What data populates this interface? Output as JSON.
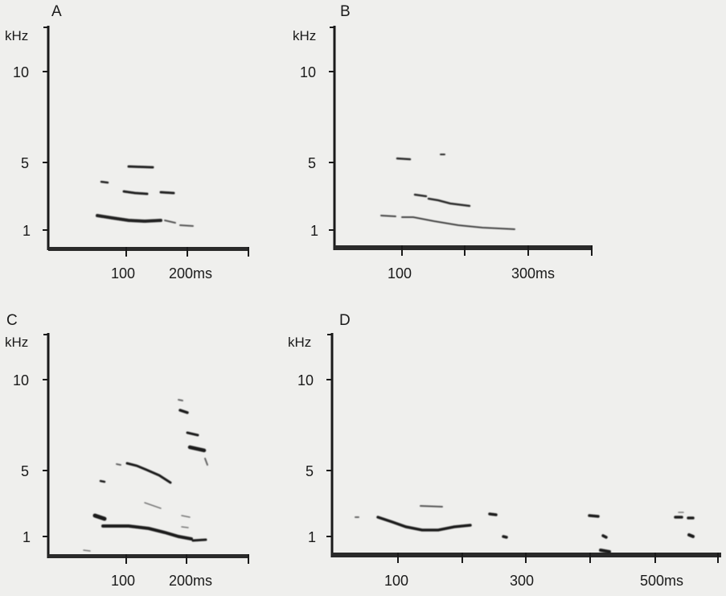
{
  "panels": [
    {
      "id": "A",
      "letter": "A",
      "y_unit": "kHz",
      "y_ticks": [
        "10",
        "5",
        "1"
      ],
      "x_ticks": [
        "100",
        "200ms"
      ]
    },
    {
      "id": "B",
      "letter": "B",
      "y_unit": "kHz",
      "y_ticks": [
        "10",
        "5",
        "1"
      ],
      "x_ticks": [
        "100",
        "300ms"
      ]
    },
    {
      "id": "C",
      "letter": "C",
      "y_unit": "kHz",
      "y_ticks": [
        "10",
        "5",
        "1"
      ],
      "x_ticks": [
        "100",
        "200ms"
      ]
    },
    {
      "id": "D",
      "letter": "D",
      "y_unit": "kHz",
      "y_ticks": [
        "10",
        "5",
        "1"
      ],
      "x_ticks": [
        "100",
        "300",
        "500ms"
      ]
    }
  ],
  "colors": {
    "background": "#efefed",
    "ink": "#1a1a1a"
  }
}
